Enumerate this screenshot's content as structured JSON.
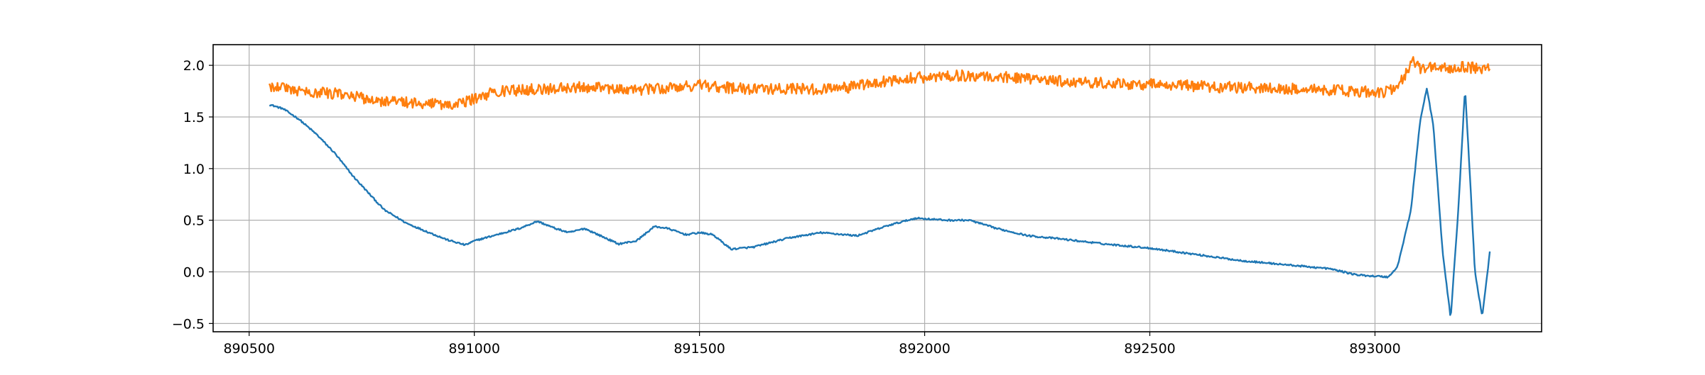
{
  "chart_data": {
    "type": "line",
    "title": "",
    "xlabel": "",
    "ylabel": "",
    "xlim": [
      890420,
      893370
    ],
    "ylim": [
      -0.58,
      2.2
    ],
    "grid": true,
    "legend": "none",
    "x_ticks": [
      {
        "value": 890500,
        "label": "890500"
      },
      {
        "value": 891000,
        "label": "891000"
      },
      {
        "value": 891500,
        "label": "891500"
      },
      {
        "value": 892000,
        "label": "892000"
      },
      {
        "value": 892500,
        "label": "892500"
      },
      {
        "value": 893000,
        "label": "893000"
      }
    ],
    "y_ticks": [
      {
        "value": -0.5,
        "label": "−0.5"
      },
      {
        "value": 0.0,
        "label": "0.0"
      },
      {
        "value": 0.5,
        "label": "0.5"
      },
      {
        "value": 1.0,
        "label": "1.0"
      },
      {
        "value": 1.5,
        "label": "1.5"
      },
      {
        "value": 2.0,
        "label": "2.0"
      }
    ],
    "series": [
      {
        "color": "#1f77b4",
        "noise": 0.008,
        "points": [
          [
            890545,
            1.62
          ],
          [
            890575,
            1.58
          ],
          [
            890610,
            1.48
          ],
          [
            890650,
            1.33
          ],
          [
            890690,
            1.15
          ],
          [
            890730,
            0.93
          ],
          [
            890770,
            0.74
          ],
          [
            890800,
            0.6
          ],
          [
            890850,
            0.47
          ],
          [
            890900,
            0.38
          ],
          [
            890940,
            0.31
          ],
          [
            890980,
            0.26
          ],
          [
            891000,
            0.3
          ],
          [
            891050,
            0.36
          ],
          [
            891100,
            0.42
          ],
          [
            891140,
            0.49
          ],
          [
            891180,
            0.42
          ],
          [
            891210,
            0.38
          ],
          [
            891245,
            0.42
          ],
          [
            891280,
            0.35
          ],
          [
            891320,
            0.27
          ],
          [
            891360,
            0.3
          ],
          [
            891400,
            0.44
          ],
          [
            891430,
            0.42
          ],
          [
            891470,
            0.36
          ],
          [
            891500,
            0.38
          ],
          [
            891530,
            0.36
          ],
          [
            891570,
            0.22
          ],
          [
            891620,
            0.24
          ],
          [
            891700,
            0.33
          ],
          [
            891770,
            0.38
          ],
          [
            891850,
            0.35
          ],
          [
            891920,
            0.45
          ],
          [
            891980,
            0.52
          ],
          [
            892050,
            0.5
          ],
          [
            892100,
            0.5
          ],
          [
            892160,
            0.42
          ],
          [
            892230,
            0.35
          ],
          [
            892300,
            0.32
          ],
          [
            892400,
            0.27
          ],
          [
            892500,
            0.23
          ],
          [
            892600,
            0.17
          ],
          [
            892700,
            0.11
          ],
          [
            892800,
            0.07
          ],
          [
            892900,
            0.03
          ],
          [
            892960,
            -0.03
          ],
          [
            893030,
            -0.05
          ],
          [
            893050,
            0.05
          ],
          [
            893080,
            0.6
          ],
          [
            893100,
            1.45
          ],
          [
            893115,
            1.78
          ],
          [
            893130,
            1.4
          ],
          [
            893150,
            0.2
          ],
          [
            893168,
            -0.45
          ],
          [
            893185,
            0.6
          ],
          [
            893200,
            1.78
          ],
          [
            893210,
            1.0
          ],
          [
            893222,
            0.0
          ],
          [
            893238,
            -0.43
          ],
          [
            893250,
            0.0
          ],
          [
            893255,
            0.19
          ]
        ]
      },
      {
        "color": "#ff7f0e",
        "noise": 0.055,
        "points": [
          [
            890545,
            1.78
          ],
          [
            890560,
            1.81
          ],
          [
            890600,
            1.76
          ],
          [
            890700,
            1.72
          ],
          [
            890800,
            1.65
          ],
          [
            890900,
            1.63
          ],
          [
            890960,
            1.61
          ],
          [
            890990,
            1.66
          ],
          [
            891050,
            1.75
          ],
          [
            891150,
            1.77
          ],
          [
            891250,
            1.79
          ],
          [
            891350,
            1.76
          ],
          [
            891450,
            1.79
          ],
          [
            891500,
            1.81
          ],
          [
            891600,
            1.77
          ],
          [
            891700,
            1.77
          ],
          [
            891800,
            1.77
          ],
          [
            891850,
            1.8
          ],
          [
            891950,
            1.87
          ],
          [
            892050,
            1.9
          ],
          [
            892150,
            1.9
          ],
          [
            892250,
            1.86
          ],
          [
            892350,
            1.84
          ],
          [
            892450,
            1.82
          ],
          [
            892550,
            1.81
          ],
          [
            892650,
            1.79
          ],
          [
            892750,
            1.78
          ],
          [
            892850,
            1.77
          ],
          [
            892950,
            1.75
          ],
          [
            893020,
            1.74
          ],
          [
            893050,
            1.8
          ],
          [
            893070,
            1.93
          ],
          [
            893085,
            2.03
          ],
          [
            893100,
            1.97
          ],
          [
            893200,
            1.98
          ],
          [
            893255,
            1.97
          ]
        ]
      }
    ]
  }
}
